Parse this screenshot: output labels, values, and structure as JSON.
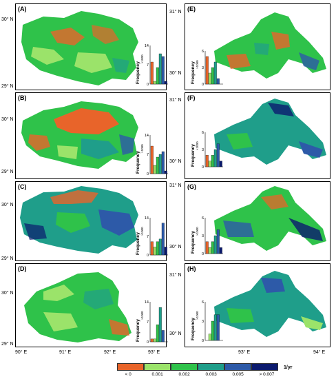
{
  "panels": [
    {
      "label": "(A)",
      "lat_labels": [
        "30° N",
        "29° N"
      ],
      "hist": {
        "y_label": "Frequency",
        "y_unit": "×1000",
        "y_ticks": [
          "14",
          "7",
          "0"
        ],
        "ymax": 14,
        "values": [
          8,
          1,
          6,
          11,
          10,
          1
        ]
      }
    },
    {
      "label": "(E)",
      "lat_labels": [
        "31° N",
        "30° N"
      ],
      "hist": {
        "y_label": "Frequency",
        "y_unit": "×1000",
        "y_ticks": [
          "6",
          "3",
          "0"
        ],
        "ymax": 6,
        "values": [
          5,
          2,
          3,
          4,
          1,
          0
        ]
      }
    },
    {
      "label": "(B)",
      "lat_labels": [
        "30° N",
        "29° N"
      ],
      "hist": {
        "y_label": "Frequency",
        "y_unit": "×1000",
        "y_ticks": [
          "14",
          "7",
          "0"
        ],
        "ymax": 14,
        "values": [
          10,
          3,
          6,
          7,
          8,
          1
        ]
      }
    },
    {
      "label": "(F)",
      "lat_labels": [
        "31° N",
        "30° N"
      ],
      "hist": {
        "y_label": "Frequency",
        "y_unit": "×1000",
        "y_ticks": [
          "6",
          "3",
          "0"
        ],
        "ymax": 6,
        "values": [
          2,
          1,
          2,
          3,
          4,
          1
        ]
      }
    },
    {
      "label": "(C)",
      "lat_labels": [
        "30° N",
        "29° N"
      ],
      "hist": {
        "y_label": "Frequency",
        "y_unit": "×1000",
        "y_ticks": [
          "14",
          "7",
          "0"
        ],
        "ymax": 14,
        "values": [
          5,
          3,
          5,
          6,
          12,
          3
        ]
      }
    },
    {
      "label": "(G)",
      "lat_labels": [
        "31° N",
        "30° N"
      ],
      "hist": {
        "y_label": "Frequency",
        "y_unit": "×1000",
        "y_ticks": [
          "6",
          "3",
          "0"
        ],
        "ymax": 6,
        "values": [
          2,
          1,
          2,
          3,
          4,
          1
        ]
      }
    },
    {
      "label": "(D)",
      "lat_labels": [
        "30° N",
        "29° N"
      ],
      "hist": {
        "y_label": "Frequency",
        "y_unit": "×1000",
        "y_ticks": [
          "14",
          "7",
          "0"
        ],
        "ymax": 14,
        "values": [
          1,
          1,
          6,
          12,
          4,
          0
        ]
      }
    },
    {
      "label": "(H)",
      "lat_labels": [
        "31° N",
        "30° N"
      ],
      "hist": {
        "y_label": "Frequency",
        "y_unit": "×1000",
        "y_ticks": [
          "6",
          "3",
          "0"
        ],
        "ymax": 6,
        "values": [
          0,
          1,
          3,
          4,
          4,
          0
        ]
      }
    }
  ],
  "lon_labels_left": [
    "90° E",
    "91° E",
    "92° E",
    "93° E"
  ],
  "lon_labels_right": [
    "93° E",
    "94° E"
  ],
  "legend": {
    "labels": [
      "< 0",
      "0.001",
      "0.002",
      "0.003",
      "0.005",
      "> 0.007"
    ],
    "unit": "1/yr",
    "colors": [
      "#e8642a",
      "#9be36a",
      "#2fc24a",
      "#1f9e8a",
      "#2d5aa8",
      "#0b1a6e"
    ]
  },
  "colors": {
    "class_lt0": "#e8642a",
    "class_0_001": "#9be36a",
    "class_0_002": "#2fc24a",
    "class_0_003": "#1f9e8a",
    "class_0_005": "#2d5aa8",
    "class_gt_007": "#0b1a6e"
  }
}
